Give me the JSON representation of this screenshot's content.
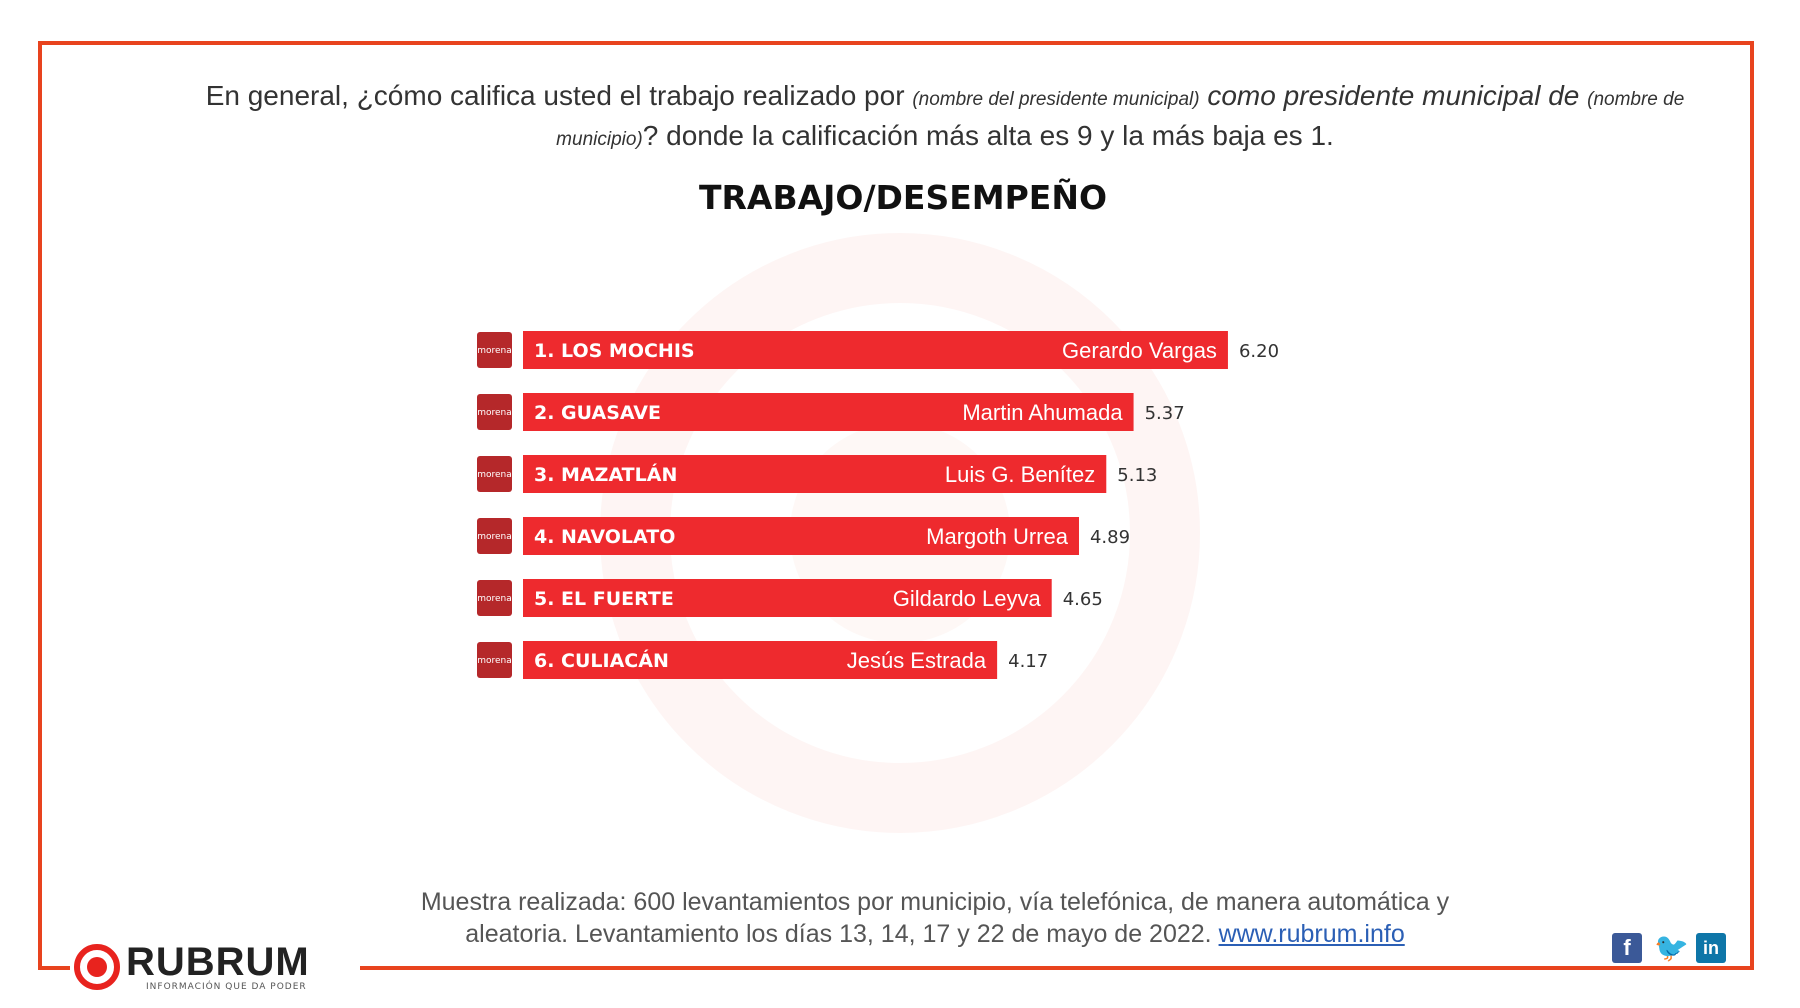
{
  "question": {
    "part1": "En general, ¿cómo califica usted el trabajo realizado por ",
    "placeholder1": "(nombre del presidente municipal)",
    "part2": " como presidente municipal de ",
    "placeholder2": "(nombre de municipio)",
    "part3": "? donde la calificación más alta es 9 y la más baja es 1."
  },
  "chart_data": {
    "type": "bar",
    "orientation": "horizontal",
    "title": "TRABAJO/DESEMPEÑO",
    "categories": [
      "1. LOS MOCHIS",
      "2. GUASAVE",
      "3. MAZATLÁN",
      "4. NAVOLATO",
      "5. EL FUERTE",
      "6. CULIACÁN"
    ],
    "candidates": [
      "Gerardo Vargas",
      "Martin Ahumada",
      "Luis G. Benítez",
      "Margoth Urrea",
      "Gildardo Leyva",
      "Jesús Estrada"
    ],
    "values": [
      6.2,
      5.37,
      5.13,
      4.89,
      4.65,
      4.17
    ],
    "value_labels": [
      "6.20",
      "5.37",
      "5.13",
      "4.89",
      "4.65",
      "4.17"
    ],
    "party_icon": "morena",
    "bar_color": "#ee2a2e",
    "party_color": "#b5282a",
    "grid": false
  },
  "footer": {
    "text_line1": "Muestra realizada: 600 levantamientos por municipio, vía telefónica, de manera automática y",
    "text_line2": "aleatoria.  Levantamiento los días 13, 14, 17 y 22 de mayo de 2022. ",
    "link": "www.rubrum.info"
  },
  "logo": {
    "name": "RUBRUM",
    "tagline": "INFORMACIÓN QUE DA PODER"
  },
  "social": [
    "facebook-icon",
    "twitter-icon",
    "linkedin-icon"
  ],
  "colors": {
    "frame": "#e8431e",
    "accent": "#e8231e"
  }
}
